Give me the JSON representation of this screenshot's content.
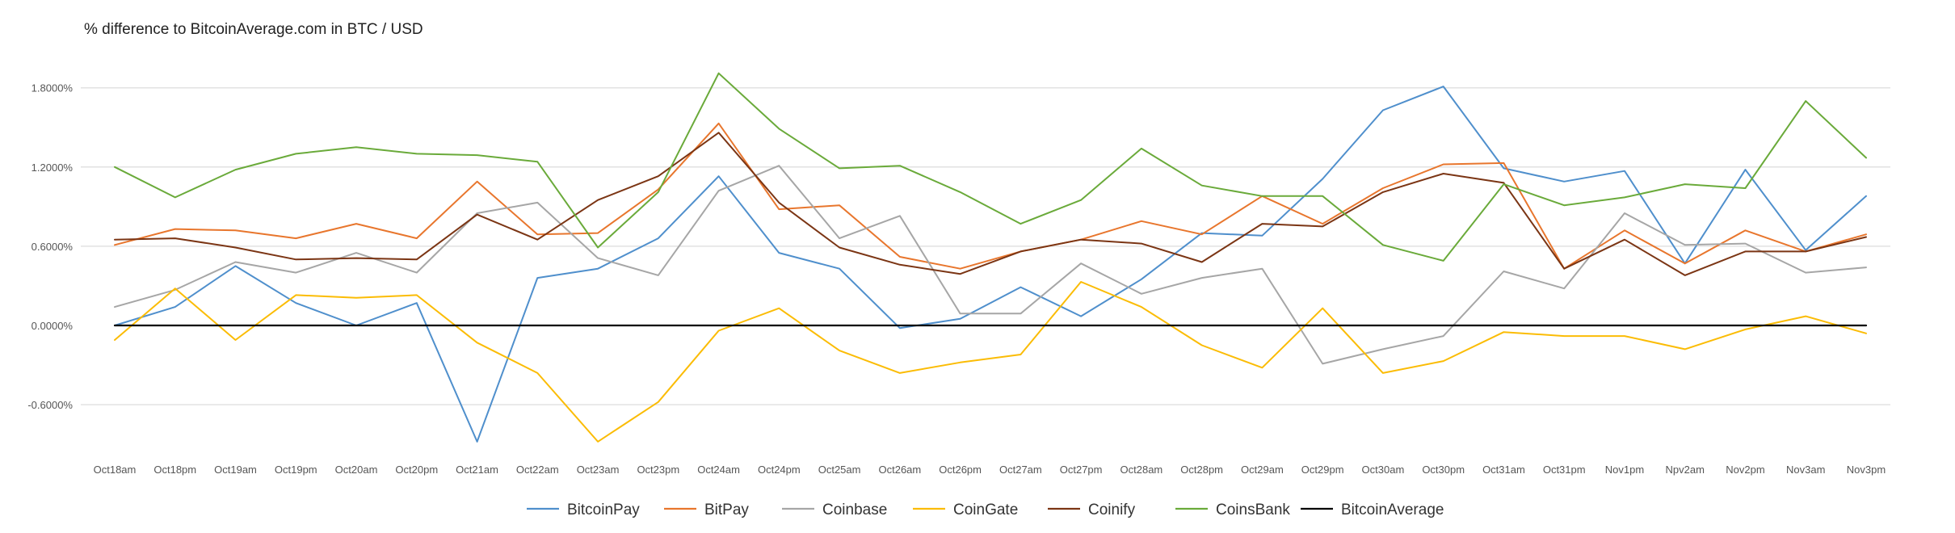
{
  "chart_data": {
    "type": "line",
    "title": "% difference to BitcoinAverage.com in BTC / USD",
    "xlabel": "",
    "ylabel": "",
    "ylim": [
      -0.9,
      2.0
    ],
    "yticks": [
      "1.8000%",
      "1.2000%",
      "0.6000%",
      "0.0000%",
      "-0.6000%"
    ],
    "ytick_values": [
      1.8,
      1.2,
      0.6,
      0.0,
      -0.6
    ],
    "grid": true,
    "legend_position": "bottom",
    "categories": [
      "Oct18am",
      "Oct18pm",
      "Oct19am",
      "Oct19pm",
      "Oct20am",
      "Oct20pm",
      "Oct21am",
      "Oct22am",
      "Oct23am",
      "Oct23pm",
      "Oct24am",
      "Oct24pm",
      "Oct25am",
      "Oct26am",
      "Oct26pm",
      "Oct27am",
      "Oct27pm",
      "Oct28am",
      "Oct28pm",
      "Oct29am",
      "Oct29pm",
      "Oct30am",
      "Oct30pm",
      "Oct31am",
      "Oct31pm",
      "Nov1pm",
      "Npv2am",
      "Nov2pm",
      "Nov3am",
      "Nov3pm"
    ],
    "series": [
      {
        "name": "BitcoinPay",
        "color": "#4f8fcc",
        "values": [
          0.0,
          0.14,
          0.45,
          0.17,
          0.0,
          0.17,
          -0.88,
          0.36,
          0.43,
          0.66,
          1.13,
          0.55,
          0.43,
          -0.02,
          0.05,
          0.29,
          0.07,
          0.35,
          0.7,
          0.68,
          1.11,
          1.63,
          1.81,
          1.19,
          1.09,
          1.17,
          0.47,
          1.18,
          0.57,
          0.98
        ]
      },
      {
        "name": "BitPay",
        "color": "#e8762d",
        "values": [
          0.61,
          0.73,
          0.72,
          0.66,
          0.77,
          0.66,
          1.09,
          0.69,
          0.7,
          1.03,
          1.53,
          0.88,
          0.91,
          0.52,
          0.43,
          0.56,
          0.65,
          0.79,
          0.69,
          0.98,
          0.77,
          1.04,
          1.22,
          1.23,
          0.43,
          0.72,
          0.47,
          0.72,
          0.56,
          0.69
        ]
      },
      {
        "name": "Coinbase",
        "color": "#a6a6a6",
        "values": [
          0.14,
          0.27,
          0.48,
          0.4,
          0.55,
          0.4,
          0.85,
          0.93,
          0.51,
          0.38,
          1.02,
          1.21,
          0.66,
          0.83,
          0.09,
          0.09,
          0.47,
          0.24,
          0.36,
          0.43,
          -0.29,
          -0.18,
          -0.08,
          0.41,
          0.28,
          0.85,
          0.61,
          0.62,
          0.4,
          0.44
        ]
      },
      {
        "name": "CoinGate",
        "color": "#fbbc05",
        "values": [
          -0.11,
          0.28,
          -0.11,
          0.23,
          0.21,
          0.23,
          -0.13,
          -0.36,
          -0.88,
          -0.58,
          -0.04,
          0.13,
          -0.19,
          -0.36,
          -0.28,
          -0.22,
          0.33,
          0.14,
          -0.15,
          -0.32,
          0.13,
          -0.36,
          -0.27,
          -0.05,
          -0.08,
          -0.08,
          -0.18,
          -0.03,
          0.07,
          -0.06
        ]
      },
      {
        "name": "Coinify",
        "color": "#7b3514",
        "values": [
          0.65,
          0.66,
          0.59,
          0.5,
          0.51,
          0.5,
          0.84,
          0.65,
          0.95,
          1.13,
          1.46,
          0.93,
          0.59,
          0.46,
          0.39,
          0.56,
          0.65,
          0.62,
          0.48,
          0.77,
          0.75,
          1.01,
          1.15,
          1.08,
          0.43,
          0.65,
          0.38,
          0.56,
          0.56,
          0.67
        ]
      },
      {
        "name": "CoinsBank",
        "color": "#6aaa3a",
        "values": [
          1.2,
          0.97,
          1.18,
          1.3,
          1.35,
          1.3,
          1.29,
          1.24,
          0.59,
          1.01,
          1.91,
          1.49,
          1.19,
          1.21,
          1.01,
          0.77,
          0.95,
          1.34,
          1.06,
          0.98,
          0.98,
          0.61,
          0.49,
          1.07,
          0.91,
          0.97,
          1.07,
          1.04,
          1.7,
          1.27
        ]
      },
      {
        "name": "BitcoinAverage",
        "color": "#000000",
        "values": [
          0,
          0,
          0,
          0,
          0,
          0,
          0,
          0,
          0,
          0,
          0,
          0,
          0,
          0,
          0,
          0,
          0,
          0,
          0,
          0,
          0,
          0,
          0,
          0,
          0,
          0,
          0,
          0,
          0,
          0
        ]
      }
    ]
  }
}
